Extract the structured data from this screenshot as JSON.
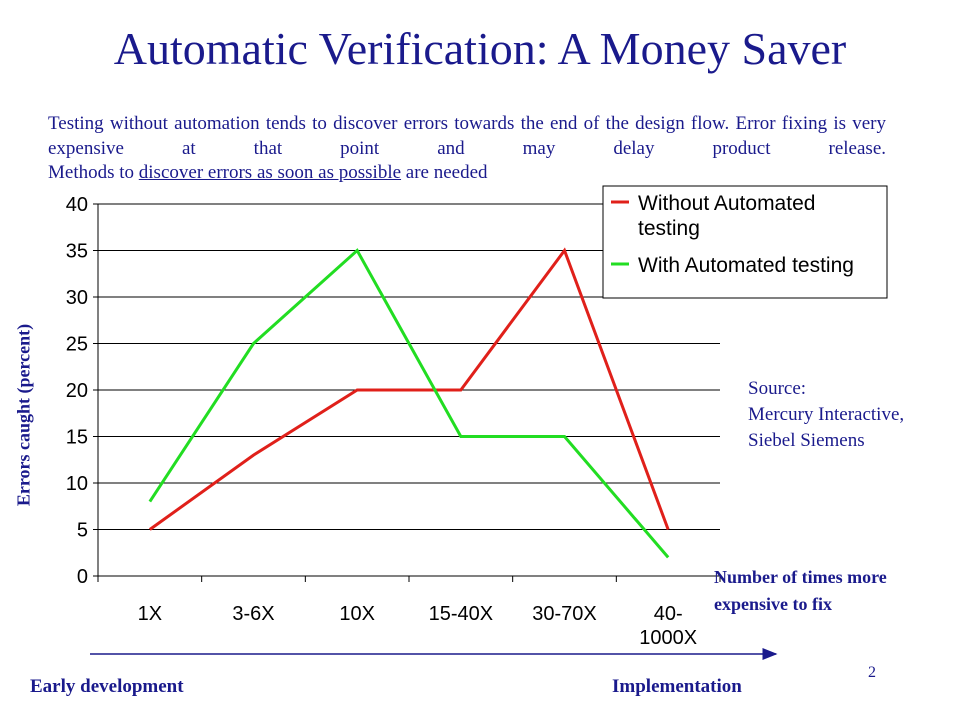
{
  "slide": {
    "title": "Automatic Verification: A Money Saver",
    "intro_text": "Testing without automation tends to discover errors towards the end of the design flow. Error fixing is very expensive at that point and may delay product release.",
    "intro_text_line3_a": "Methods to ",
    "intro_text_line3_underlined": "discover errors as soon as possible",
    "intro_text_line3_b": " are needed",
    "source_note": [
      "Source:",
      "Mercury Interactive,",
      "Siebel Siemens"
    ],
    "x_note": [
      "Number of times more",
      "expensive to fix"
    ],
    "timeline": {
      "start_label": "Early development",
      "end_label": "Implementation"
    },
    "page_number": "2"
  },
  "colors": {
    "text": "#1a1a8c",
    "without": "#e0201a",
    "with": "#22dd22",
    "axis": "#000000",
    "grid": "#000000"
  },
  "chart_data": {
    "type": "line",
    "ylabel": "Errors caught (percent)",
    "xlabel": "",
    "categories": [
      "1X",
      "3-6X",
      "10X",
      "15-40X",
      "30-70X",
      "40-1000X"
    ],
    "category_tick_lines": [
      [
        "1X"
      ],
      [
        "3-6X"
      ],
      [
        "10X"
      ],
      [
        "15-40X"
      ],
      [
        "30-70X"
      ],
      [
        "40-",
        "1000X"
      ]
    ],
    "ylim": [
      0,
      40
    ],
    "yticks": [
      0,
      5,
      10,
      15,
      20,
      25,
      30,
      35,
      40
    ],
    "grid": "horizontal",
    "legend_position": "top-right",
    "series": [
      {
        "name": "Without Automated testing",
        "legend_lines": [
          "Without Automated",
          "testing"
        ],
        "color": "#e0201a",
        "values": [
          5,
          13,
          20,
          20,
          35,
          5
        ]
      },
      {
        "name": "With Automated testing",
        "legend_lines": [
          "With Automated testing"
        ],
        "color": "#22dd22",
        "values": [
          8,
          25,
          35,
          15,
          15,
          2
        ]
      }
    ]
  }
}
